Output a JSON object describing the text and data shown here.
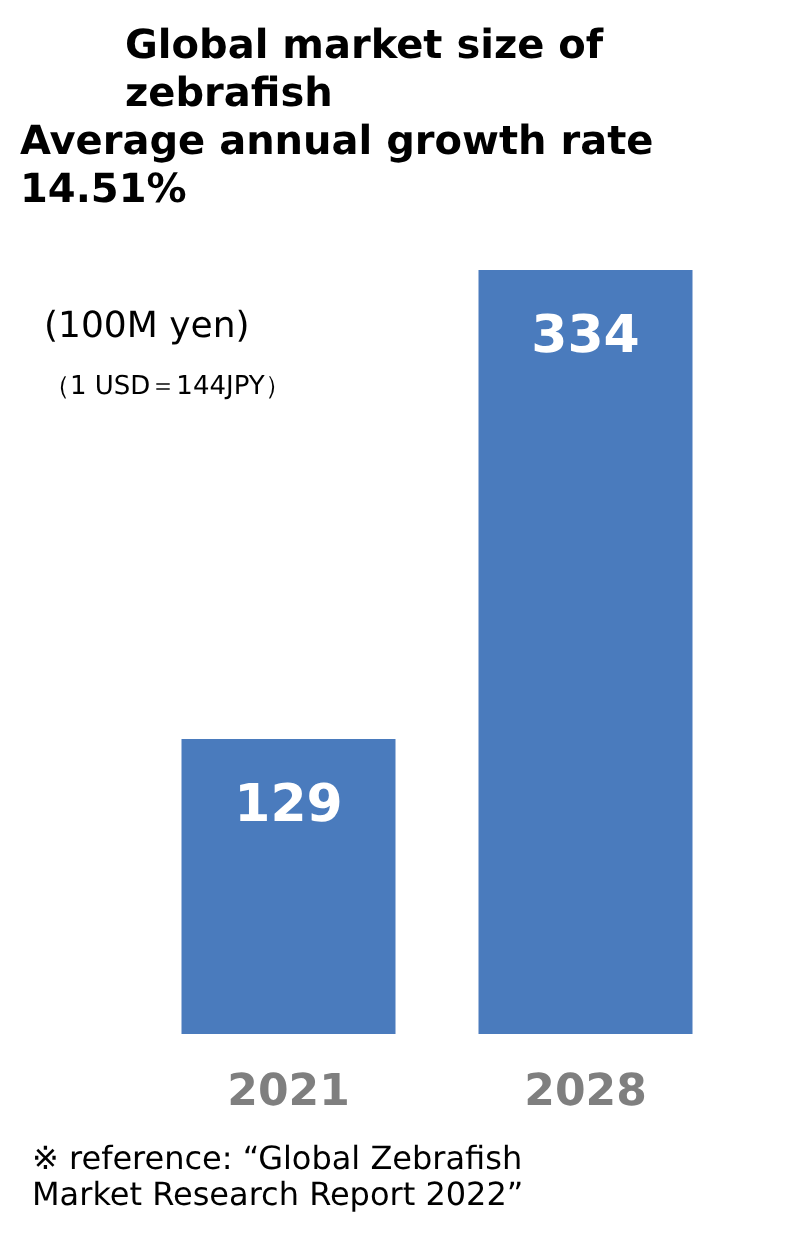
{
  "chart_data": {
    "type": "bar",
    "title": "Global market size of zebrafish",
    "subtitle": "Average annual growth rate 14.51%",
    "categories": [
      "2021",
      "2028"
    ],
    "values": [
      129,
      334
    ],
    "color": "#4a7bbd",
    "data_labels": true,
    "annotations": [
      "(100M yen)",
      "（1 USD＝144JPY）",
      "※ reference: “Global Zebrafish Market Research Report 2022”"
    ]
  }
}
